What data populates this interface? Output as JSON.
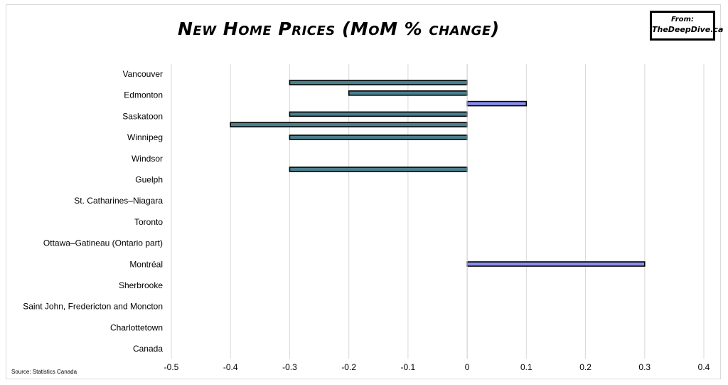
{
  "header": {
    "badge_line1": "From:",
    "badge_line2": "TheDeepDive.ca"
  },
  "footer": {
    "source": "Source: Statistics Canada"
  },
  "colors": {
    "negative_bar": "#4a7f8c",
    "positive_bar": "#8a8ef0",
    "bar_outline": "#000000",
    "grid": "#d9d9d9"
  },
  "chart_data": {
    "type": "bar",
    "orientation": "horizontal",
    "title": "New Home Prices (MoM % change)",
    "xlim": [
      -0.5,
      0.4
    ],
    "x_ticks": [
      -0.5,
      -0.4,
      -0.3,
      -0.2,
      -0.1,
      0,
      0.1,
      0.2,
      0.3,
      0.4
    ],
    "x_tick_labels": [
      "-0.5",
      "-0.4",
      "-0.3",
      "-0.2",
      "-0.1",
      "0",
      "0.1",
      "0.2",
      "0.3",
      "0.4"
    ],
    "grid": true,
    "legend": "none",
    "labeled_categories": [
      "Vancouver",
      "Edmonton",
      "Saskatoon",
      "Winnipeg",
      "Windsor",
      "Guelph",
      "St. Catharines–Niagara",
      "Toronto",
      "Ottawa–Gatineau (Ontario part)",
      "Montréal",
      "Sherbrooke",
      "Saint John, Fredericton and Moncton",
      "Charlottetown",
      "Canada"
    ],
    "bars": [
      {
        "value": -0.3
      },
      {
        "value": -0.2
      },
      {
        "value": 0.1
      },
      {
        "value": -0.3
      },
      {
        "value": -0.4
      },
      {
        "value": -0.3
      },
      {
        "value": -0.3
      },
      {
        "value": 0.3
      }
    ]
  }
}
